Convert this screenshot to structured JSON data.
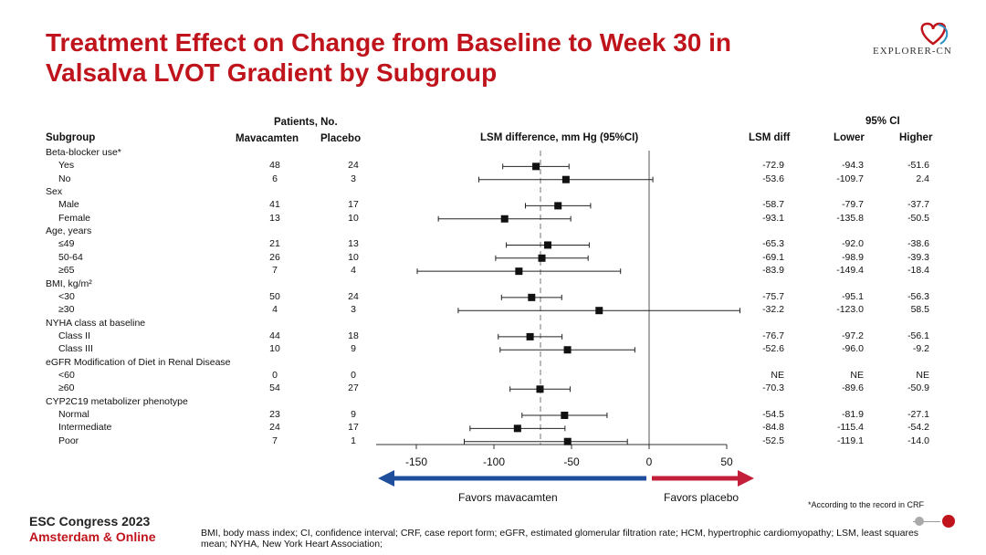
{
  "title": "Treatment Effect on Change from Baseline to Week 30 in Valsalva LVOT Gradient by Subgroup",
  "logo": {
    "text": "EXPLORER-CN"
  },
  "headers": {
    "subgroup": "Subgroup",
    "patients": "Patients, No.",
    "mavacamten": "Mavacamten",
    "placebo": "Placebo",
    "lsm_plot": "LSM difference, mm Hg (95%CI)",
    "ci95": "95% CI",
    "lsm_diff": "LSM diff",
    "lower": "Lower",
    "higher": "Higher"
  },
  "rows": [
    {
      "type": "group",
      "label": "Beta-blocker use*"
    },
    {
      "type": "item",
      "label": "Yes",
      "mava": "48",
      "placebo": "24",
      "diff": "-72.9",
      "lower": "-94.3",
      "higher": "-51.6"
    },
    {
      "type": "item",
      "label": "No",
      "mava": "6",
      "placebo": "3",
      "diff": "-53.6",
      "lower": "-109.7",
      "higher": "2.4"
    },
    {
      "type": "group",
      "label": "Sex"
    },
    {
      "type": "item",
      "label": "Male",
      "mava": "41",
      "placebo": "17",
      "diff": "-58.7",
      "lower": "-79.7",
      "higher": "-37.7"
    },
    {
      "type": "item",
      "label": "Female",
      "mava": "13",
      "placebo": "10",
      "diff": "-93.1",
      "lower": "-135.8",
      "higher": "-50.5"
    },
    {
      "type": "group",
      "label": "Age, years"
    },
    {
      "type": "item",
      "label": "≤49",
      "mava": "21",
      "placebo": "13",
      "diff": "-65.3",
      "lower": "-92.0",
      "higher": "-38.6"
    },
    {
      "type": "item",
      "label": "50-64",
      "mava": "26",
      "placebo": "10",
      "diff": "-69.1",
      "lower": "-98.9",
      "higher": "-39.3"
    },
    {
      "type": "item",
      "label": "≥65",
      "mava": "7",
      "placebo": "4",
      "diff": "-83.9",
      "lower": "-149.4",
      "higher": "-18.4"
    },
    {
      "type": "group",
      "label": "BMI, kg/m²"
    },
    {
      "type": "item",
      "label": "<30",
      "mava": "50",
      "placebo": "24",
      "diff": "-75.7",
      "lower": "-95.1",
      "higher": "-56.3"
    },
    {
      "type": "item",
      "label": "≥30",
      "mava": "4",
      "placebo": "3",
      "diff": "-32.2",
      "lower": "-123.0",
      "higher": "58.5"
    },
    {
      "type": "group",
      "label": "NYHA class at baseline"
    },
    {
      "type": "item",
      "label": "Class II",
      "mava": "44",
      "placebo": "18",
      "diff": "-76.7",
      "lower": "-97.2",
      "higher": "-56.1"
    },
    {
      "type": "item",
      "label": "Class III",
      "mava": "10",
      "placebo": "9",
      "diff": "-52.6",
      "lower": "-96.0",
      "higher": "-9.2"
    },
    {
      "type": "group",
      "label": "eGFR Modification of Diet in Renal Disease"
    },
    {
      "type": "item",
      "label": "<60",
      "mava": "0",
      "placebo": "0",
      "diff": "NE",
      "lower": "NE",
      "higher": "NE"
    },
    {
      "type": "item",
      "label": "≥60",
      "mava": "54",
      "placebo": "27",
      "diff": "-70.3",
      "lower": "-89.6",
      "higher": "-50.9"
    },
    {
      "type": "group",
      "label": "CYP2C19 metabolizer phenotype"
    },
    {
      "type": "item",
      "label": "Normal",
      "mava": "23",
      "placebo": "9",
      "diff": "-54.5",
      "lower": "-81.9",
      "higher": "-27.1"
    },
    {
      "type": "item",
      "label": "Intermediate",
      "mava": "24",
      "placebo": "17",
      "diff": "-84.8",
      "lower": "-115.4",
      "higher": "-54.2"
    },
    {
      "type": "item",
      "label": "Poor",
      "mava": "7",
      "placebo": "1",
      "diff": "-52.5",
      "lower": "-119.1",
      "higher": "-14.0"
    }
  ],
  "chart_data": {
    "type": "forest",
    "xlabel": "LSM difference, mm Hg (95%CI)",
    "xticks": [
      -150,
      -100,
      -50,
      0,
      50
    ],
    "xlim": [
      -175,
      50
    ],
    "reference_line": 0,
    "overall_dashed_line": -70,
    "points": [
      {
        "label": "Yes",
        "est": -72.9,
        "lo": -94.3,
        "hi": -51.6
      },
      {
        "label": "No",
        "est": -53.6,
        "lo": -109.7,
        "hi": 2.4
      },
      {
        "label": "Male",
        "est": -58.7,
        "lo": -79.7,
        "hi": -37.7
      },
      {
        "label": "Female",
        "est": -93.1,
        "lo": -135.8,
        "hi": -50.5
      },
      {
        "label": "≤49",
        "est": -65.3,
        "lo": -92.0,
        "hi": -38.6
      },
      {
        "label": "50-64",
        "est": -69.1,
        "lo": -98.9,
        "hi": -39.3
      },
      {
        "label": "≥65",
        "est": -83.9,
        "lo": -149.4,
        "hi": -18.4
      },
      {
        "label": "<30",
        "est": -75.7,
        "lo": -95.1,
        "hi": -56.3
      },
      {
        "label": "≥30",
        "est": -32.2,
        "lo": -123.0,
        "hi": 58.5
      },
      {
        "label": "Class II",
        "est": -76.7,
        "lo": -97.2,
        "hi": -56.1
      },
      {
        "label": "Class III",
        "est": -52.6,
        "lo": -96.0,
        "hi": -9.2
      },
      {
        "label": "≥60",
        "est": -70.3,
        "lo": -89.6,
        "hi": -50.9
      },
      {
        "label": "Normal",
        "est": -54.5,
        "lo": -81.9,
        "hi": -27.1
      },
      {
        "label": "Intermediate",
        "est": -84.8,
        "lo": -115.4,
        "hi": -54.2
      },
      {
        "label": "Poor",
        "est": -52.5,
        "lo": -119.1,
        "hi": -14.0
      }
    ],
    "favors_left": "Favors mavacamten",
    "favors_right": "Favors placebo",
    "colors": {
      "left_arrow": "#1f4f9c",
      "right_arrow": "#c41f3a",
      "title": "#c0141c"
    }
  },
  "crf_note": "*According to the record in CRF",
  "conference": {
    "line1": "ESC Congress 2023",
    "line2": "Amsterdam & Online"
  },
  "footnote": "BMI, body mass index; CI, confidence interval; CRF, case report form; eGFR, estimated glomerular filtration rate; HCM, hypertrophic cardiomyopathy; LSM, least squares mean; NYHA, New York Heart Association;"
}
